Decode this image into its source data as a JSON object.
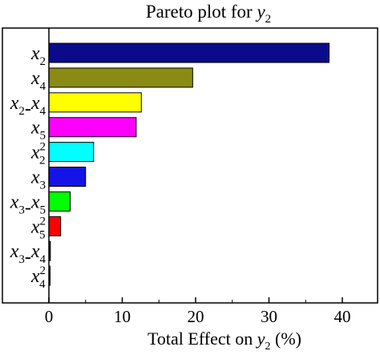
{
  "chart_data": {
    "type": "bar",
    "orientation": "horizontal",
    "title": {
      "text": "Pareto plot for ",
      "var": "y",
      "sub": "2"
    },
    "xlabel": {
      "pre": "Total Effect on ",
      "var": "y",
      "sub": "2",
      "post": " (%)"
    },
    "categories": [
      {
        "parts": [
          [
            "x",
            "2",
            ""
          ]
        ]
      },
      {
        "parts": [
          [
            "x",
            "4",
            ""
          ]
        ]
      },
      {
        "parts": [
          [
            "x",
            "2",
            ""
          ],
          [
            "x",
            "4",
            ""
          ]
        ],
        "joiner": "-"
      },
      {
        "parts": [
          [
            "x",
            "5",
            ""
          ]
        ]
      },
      {
        "parts": [
          [
            "x",
            "2",
            "2"
          ]
        ]
      },
      {
        "parts": [
          [
            "x",
            "3",
            ""
          ]
        ]
      },
      {
        "parts": [
          [
            "x",
            "3",
            ""
          ],
          [
            "x",
            "5",
            ""
          ]
        ],
        "joiner": "-"
      },
      {
        "parts": [
          [
            "x",
            "5",
            "2"
          ]
        ]
      },
      {
        "parts": [
          [
            "x",
            "3",
            ""
          ],
          [
            "x",
            "4",
            ""
          ]
        ],
        "joiner": "-"
      },
      {
        "parts": [
          [
            "x",
            "4",
            "2"
          ]
        ]
      }
    ],
    "values": [
      38.2,
      19.6,
      12.6,
      11.9,
      6.1,
      5.0,
      2.9,
      1.6,
      0.2,
      0.1
    ],
    "colors": [
      "#0a0a8a",
      "#8a8a14",
      "#ffff00",
      "#ff00ff",
      "#00ffff",
      "#1414e6",
      "#00ff00",
      "#ff0000",
      "#3a0a5a",
      "#000000"
    ],
    "xlim": [
      0,
      44
    ],
    "xticks": [
      0,
      10,
      20,
      30,
      40
    ],
    "grid": false,
    "legend": "none"
  }
}
